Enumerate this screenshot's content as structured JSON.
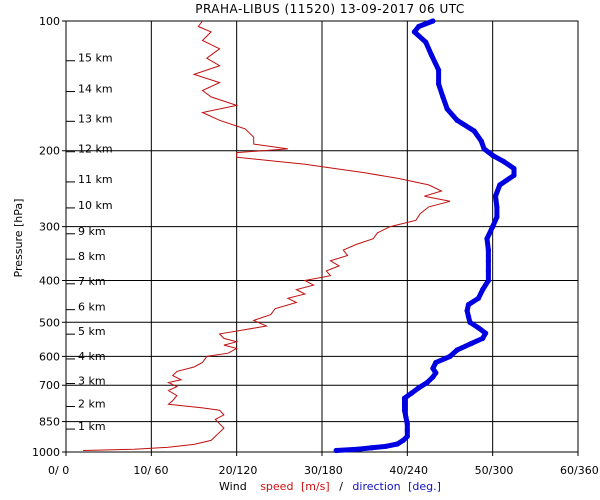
{
  "chart_data": {
    "type": "line",
    "title": "PRAHA-LIBUS (11520)    13-09-2017  06   UTC",
    "ylabel": "Pressure [hPa]",
    "xlabel": {
      "prefix": "Wind",
      "speed_word": "speed",
      "speed_unit": "[m/s]",
      "sep": "/",
      "dir_word": "direction",
      "dir_unit": "[deg.]"
    },
    "x_ticks": [
      "0/  0",
      "10/ 60",
      "20/120",
      "30/180",
      "40/240",
      "50/300",
      "60/360"
    ],
    "x_range_speed": [
      0,
      60
    ],
    "x_range_direction": [
      0,
      360
    ],
    "y_range": [
      1000,
      100
    ],
    "y_scale": "log",
    "pressure_ticks": [
      100,
      200,
      300,
      400,
      500,
      600,
      700,
      850,
      1000
    ],
    "height_labels": [
      {
        "label": "1 km",
        "p": 880
      },
      {
        "label": "2 km",
        "p": 780
      },
      {
        "label": "3 km",
        "p": 690
      },
      {
        "label": "4 km",
        "p": 605
      },
      {
        "label": "5 km",
        "p": 530
      },
      {
        "label": "6 km",
        "p": 465
      },
      {
        "label": "7 km",
        "p": 405
      },
      {
        "label": "8 km",
        "p": 355
      },
      {
        "label": "9 km",
        "p": 310
      },
      {
        "label": "10 km",
        "p": 270
      },
      {
        "label": "11 km",
        "p": 235
      },
      {
        "label": "12 km",
        "p": 200
      },
      {
        "label": "13 km",
        "p": 170
      },
      {
        "label": "14 km",
        "p": 145
      },
      {
        "label": "15 km",
        "p": 123
      }
    ],
    "series": [
      {
        "name": "speed",
        "units": "m/s",
        "color": "#c01010",
        "points": [
          [
            992,
            2
          ],
          [
            985,
            8
          ],
          [
            975,
            12
          ],
          [
            960,
            15
          ],
          [
            940,
            17
          ],
          [
            920,
            17.5
          ],
          [
            900,
            18
          ],
          [
            880,
            18.5
          ],
          [
            860,
            18
          ],
          [
            840,
            17.5
          ],
          [
            820,
            18.5
          ],
          [
            800,
            18
          ],
          [
            790,
            16
          ],
          [
            775,
            12
          ],
          [
            760,
            12.5
          ],
          [
            740,
            13
          ],
          [
            720,
            12
          ],
          [
            705,
            13
          ],
          [
            690,
            12
          ],
          [
            680,
            13.5
          ],
          [
            665,
            12.5
          ],
          [
            650,
            13
          ],
          [
            635,
            15
          ],
          [
            620,
            16
          ],
          [
            600,
            16.5
          ],
          [
            590,
            19
          ],
          [
            575,
            20
          ],
          [
            565,
            18.5
          ],
          [
            555,
            20
          ],
          [
            545,
            18.5
          ],
          [
            532,
            18
          ],
          [
            520,
            21
          ],
          [
            510,
            23.5
          ],
          [
            495,
            22
          ],
          [
            480,
            24
          ],
          [
            465,
            24.5
          ],
          [
            450,
            27
          ],
          [
            440,
            26
          ],
          [
            430,
            28
          ],
          [
            420,
            27
          ],
          [
            410,
            29
          ],
          [
            400,
            28
          ],
          [
            390,
            31
          ],
          [
            380,
            30.5
          ],
          [
            370,
            32
          ],
          [
            360,
            31
          ],
          [
            350,
            33
          ],
          [
            340,
            32.5
          ],
          [
            330,
            34
          ],
          [
            320,
            36
          ],
          [
            310,
            36.5
          ],
          [
            300,
            38
          ],
          [
            290,
            41
          ],
          [
            280,
            41.5
          ],
          [
            270,
            42.5
          ],
          [
            262,
            45
          ],
          [
            255,
            42
          ],
          [
            248,
            44
          ],
          [
            240,
            42.5
          ],
          [
            232,
            39
          ],
          [
            225,
            35
          ],
          [
            215,
            28
          ],
          [
            207,
            20
          ],
          [
            202,
            20
          ],
          [
            198,
            26
          ],
          [
            193,
            22
          ],
          [
            186,
            22
          ],
          [
            178,
            21
          ],
          [
            170,
            18
          ],
          [
            163,
            16
          ],
          [
            157,
            20
          ],
          [
            150,
            17
          ],
          [
            145,
            16
          ],
          [
            139,
            18
          ],
          [
            133,
            15
          ],
          [
            127,
            18
          ],
          [
            122,
            16.5
          ],
          [
            116,
            18
          ],
          [
            111,
            16
          ],
          [
            106,
            17
          ],
          [
            103,
            15.5
          ],
          [
            100,
            16
          ]
        ]
      },
      {
        "name": "direction",
        "units": "deg",
        "color": "#0000e0",
        "points": [
          [
            992,
            190
          ],
          [
            985,
            205
          ],
          [
            978,
            215
          ],
          [
            970,
            225
          ],
          [
            958,
            233
          ],
          [
            940,
            237
          ],
          [
            920,
            240
          ],
          [
            890,
            240
          ],
          [
            860,
            240
          ],
          [
            830,
            239
          ],
          [
            800,
            238
          ],
          [
            775,
            238
          ],
          [
            750,
            238
          ],
          [
            730,
            243
          ],
          [
            710,
            248
          ],
          [
            690,
            254
          ],
          [
            670,
            258
          ],
          [
            655,
            260
          ],
          [
            640,
            258
          ],
          [
            620,
            260
          ],
          [
            600,
            270
          ],
          [
            580,
            275
          ],
          [
            560,
            285
          ],
          [
            545,
            293
          ],
          [
            530,
            295
          ],
          [
            515,
            290
          ],
          [
            500,
            284
          ],
          [
            485,
            283
          ],
          [
            470,
            282
          ],
          [
            455,
            283
          ],
          [
            440,
            290
          ],
          [
            420,
            293
          ],
          [
            400,
            297
          ],
          [
            380,
            297
          ],
          [
            360,
            297
          ],
          [
            340,
            297
          ],
          [
            320,
            296
          ],
          [
            300,
            300
          ],
          [
            285,
            303
          ],
          [
            270,
            303
          ],
          [
            255,
            302
          ],
          [
            240,
            305
          ],
          [
            228,
            315
          ],
          [
            220,
            315
          ],
          [
            212,
            308
          ],
          [
            205,
            300
          ],
          [
            198,
            294
          ],
          [
            190,
            292
          ],
          [
            180,
            287
          ],
          [
            170,
            275
          ],
          [
            160,
            268
          ],
          [
            150,
            265
          ],
          [
            140,
            262
          ],
          [
            130,
            262
          ],
          [
            120,
            257
          ],
          [
            112,
            253
          ],
          [
            106,
            245
          ],
          [
            103,
            248
          ],
          [
            100,
            258
          ]
        ]
      }
    ],
    "grid": true
  }
}
